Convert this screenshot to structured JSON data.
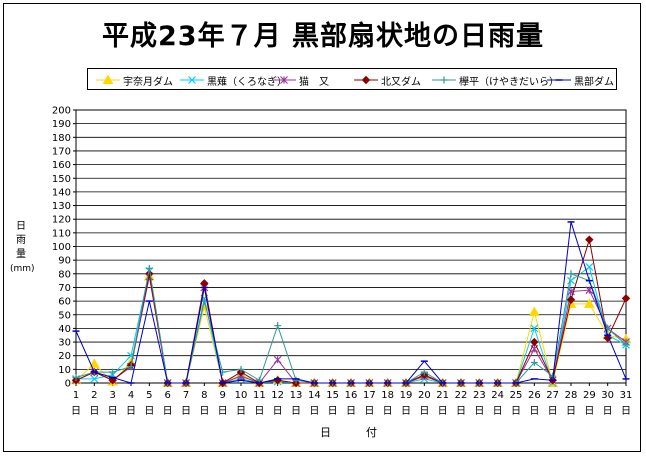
{
  "title": "平成23年７月 黒部扇状地の日雨量",
  "chart_data": {
    "type": "line",
    "title": "平成23年７月 黒部扇状地の日雨量",
    "ylabel_lines": [
      "日",
      "雨",
      "量",
      "(mm)"
    ],
    "xlabel": "日　付",
    "x_suffix": "日",
    "ylim": [
      0,
      200
    ],
    "ytick_step": 10,
    "grid": true,
    "legend_position": "top",
    "categories": [
      "1",
      "2",
      "3",
      "4",
      "5",
      "6",
      "7",
      "8",
      "9",
      "10",
      "11",
      "12",
      "13",
      "14",
      "15",
      "16",
      "17",
      "18",
      "19",
      "20",
      "21",
      "22",
      "23",
      "24",
      "25",
      "26",
      "27",
      "28",
      "29",
      "30",
      "31"
    ],
    "series": [
      {
        "name": "宇奈月ダム",
        "color": "#FFD700",
        "marker": "triangle",
        "values": [
          2,
          14,
          1,
          15,
          78,
          0,
          0,
          56,
          0,
          6,
          0,
          2,
          0,
          0,
          0,
          0,
          0,
          0,
          0,
          5,
          0,
          0,
          0,
          0,
          0,
          52,
          0,
          58,
          58,
          35,
          32
        ]
      },
      {
        "name": "黒薙（くろなぎ）",
        "color": "#00CCFF",
        "marker": "x",
        "values": [
          3,
          3,
          6,
          20,
          82,
          0,
          0,
          62,
          0,
          3,
          0,
          1,
          0,
          0,
          0,
          0,
          0,
          0,
          0,
          3,
          0,
          0,
          0,
          0,
          0,
          40,
          0,
          75,
          85,
          35,
          28
        ]
      },
      {
        "name": "猫　又",
        "color": "#993399",
        "marker": "asterisk",
        "values": [
          2,
          8,
          2,
          12,
          78,
          0,
          0,
          70,
          0,
          5,
          0,
          17,
          0,
          0,
          0,
          0,
          0,
          0,
          0,
          5,
          0,
          0,
          0,
          0,
          0,
          25,
          2,
          67,
          68,
          40,
          30
        ]
      },
      {
        "name": "北又ダム",
        "color": "#8B0000",
        "marker": "diamond",
        "values": [
          2,
          8,
          2,
          13,
          80,
          0,
          0,
          73,
          0,
          8,
          0,
          2,
          0,
          0,
          0,
          0,
          0,
          0,
          0,
          6,
          0,
          0,
          0,
          0,
          0,
          30,
          2,
          61,
          105,
          33,
          62
        ]
      },
      {
        "name": "欅平（けやきだいら）",
        "color": "#339999",
        "marker": "plus",
        "values": [
          4,
          8,
          8,
          12,
          84,
          0,
          0,
          60,
          8,
          10,
          2,
          42,
          2,
          0,
          0,
          0,
          0,
          0,
          0,
          8,
          0,
          0,
          0,
          0,
          0,
          15,
          5,
          80,
          75,
          40,
          28
        ]
      },
      {
        "name": "黒部ダム",
        "color": "#0000CC",
        "marker": "dash",
        "values": [
          38,
          8,
          4,
          0,
          60,
          0,
          0,
          70,
          0,
          2,
          0,
          3,
          3,
          0,
          0,
          0,
          0,
          0,
          0,
          16,
          0,
          0,
          0,
          0,
          0,
          3,
          2,
          118,
          75,
          35,
          3
        ]
      }
    ]
  }
}
